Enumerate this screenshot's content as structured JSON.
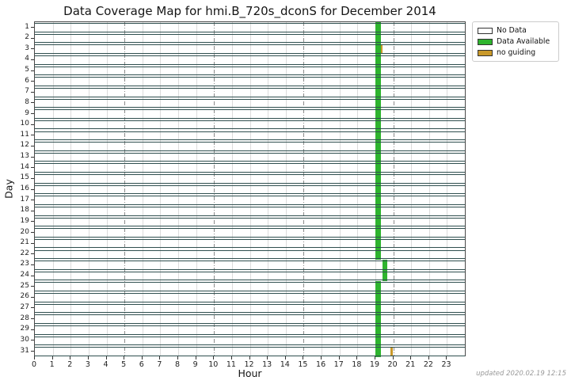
{
  "title": "Data Coverage Map for hmi.B_720s_dconS for December 2014",
  "footer": "updated 2020.02.19 12:15",
  "legend": {
    "items": [
      {
        "label": "No Data",
        "color": "#ffffff"
      },
      {
        "label": "Data Available",
        "color": "#2eb42e"
      },
      {
        "label": "no guiding",
        "color": "#c9992a"
      }
    ]
  },
  "chart_data": {
    "type": "heatmap",
    "title": "Data Coverage Map for hmi.B_720s_dconS for December 2014",
    "xlabel": "Hour",
    "ylabel": "Day",
    "xlim": [
      0,
      24.1
    ],
    "x_ticks": [
      0,
      1,
      2,
      3,
      4,
      5,
      6,
      7,
      8,
      9,
      10,
      11,
      12,
      13,
      14,
      15,
      16,
      17,
      18,
      19,
      20,
      21,
      22,
      23
    ],
    "y_ticks": [
      1,
      2,
      3,
      4,
      5,
      6,
      7,
      8,
      9,
      10,
      11,
      12,
      13,
      14,
      15,
      16,
      17,
      18,
      19,
      20,
      21,
      22,
      23,
      24,
      25,
      26,
      27,
      28,
      29,
      30,
      31
    ],
    "grid": {
      "minor_hours": [
        1,
        2,
        3,
        4,
        6,
        7,
        8,
        9,
        11,
        12,
        13,
        14,
        16,
        17,
        18,
        19,
        21,
        22,
        23
      ],
      "dashdot_hours": [
        5,
        10,
        15,
        20
      ]
    },
    "row_fill_color": "#ffffff",
    "row_border_color": "#2F4F4F",
    "segments": [
      {
        "status": "Data Available",
        "color": "#2eb42e",
        "days": [
          1,
          2,
          3,
          4,
          5,
          6,
          7,
          8,
          9,
          10,
          11,
          12,
          13,
          14,
          15,
          16,
          17,
          18,
          19,
          20,
          21,
          22,
          25,
          26,
          27,
          28,
          29,
          30,
          31
        ],
        "start_hour": 19.0,
        "end_hour": 19.3
      },
      {
        "status": "Data Available",
        "color": "#2eb42e",
        "days": [
          23,
          24
        ],
        "start_hour": 19.38,
        "end_hour": 19.65
      },
      {
        "status": "no guiding",
        "color": "#c9992a",
        "days": [
          3
        ],
        "start_hour": 19.3,
        "end_hour": 19.42
      },
      {
        "status": "no guiding",
        "color": "#c9992a",
        "days": [
          31
        ],
        "start_hour": 19.86,
        "end_hour": 19.98
      }
    ]
  }
}
